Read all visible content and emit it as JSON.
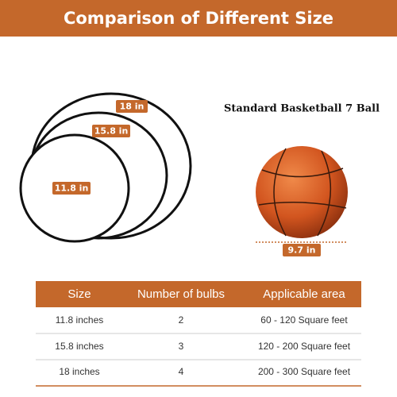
{
  "header": {
    "title": "Comparison of Different Size"
  },
  "rings": [
    {
      "label": "18 in"
    },
    {
      "label": "15.8 in"
    },
    {
      "label": "11.8 in"
    }
  ],
  "ball": {
    "title": "Standard Basketball 7 Ball",
    "label": "9.7 in"
  },
  "table": {
    "columns": [
      "Size",
      "Number of bulbs",
      "Applicable area"
    ],
    "rows": [
      [
        "11.8 inches",
        "2",
        "60 - 120 Square feet"
      ],
      [
        "15.8 inches",
        "3",
        "120 - 200 Square feet"
      ],
      [
        "18 inches",
        "4",
        "200 - 300 Square feet"
      ]
    ]
  }
}
